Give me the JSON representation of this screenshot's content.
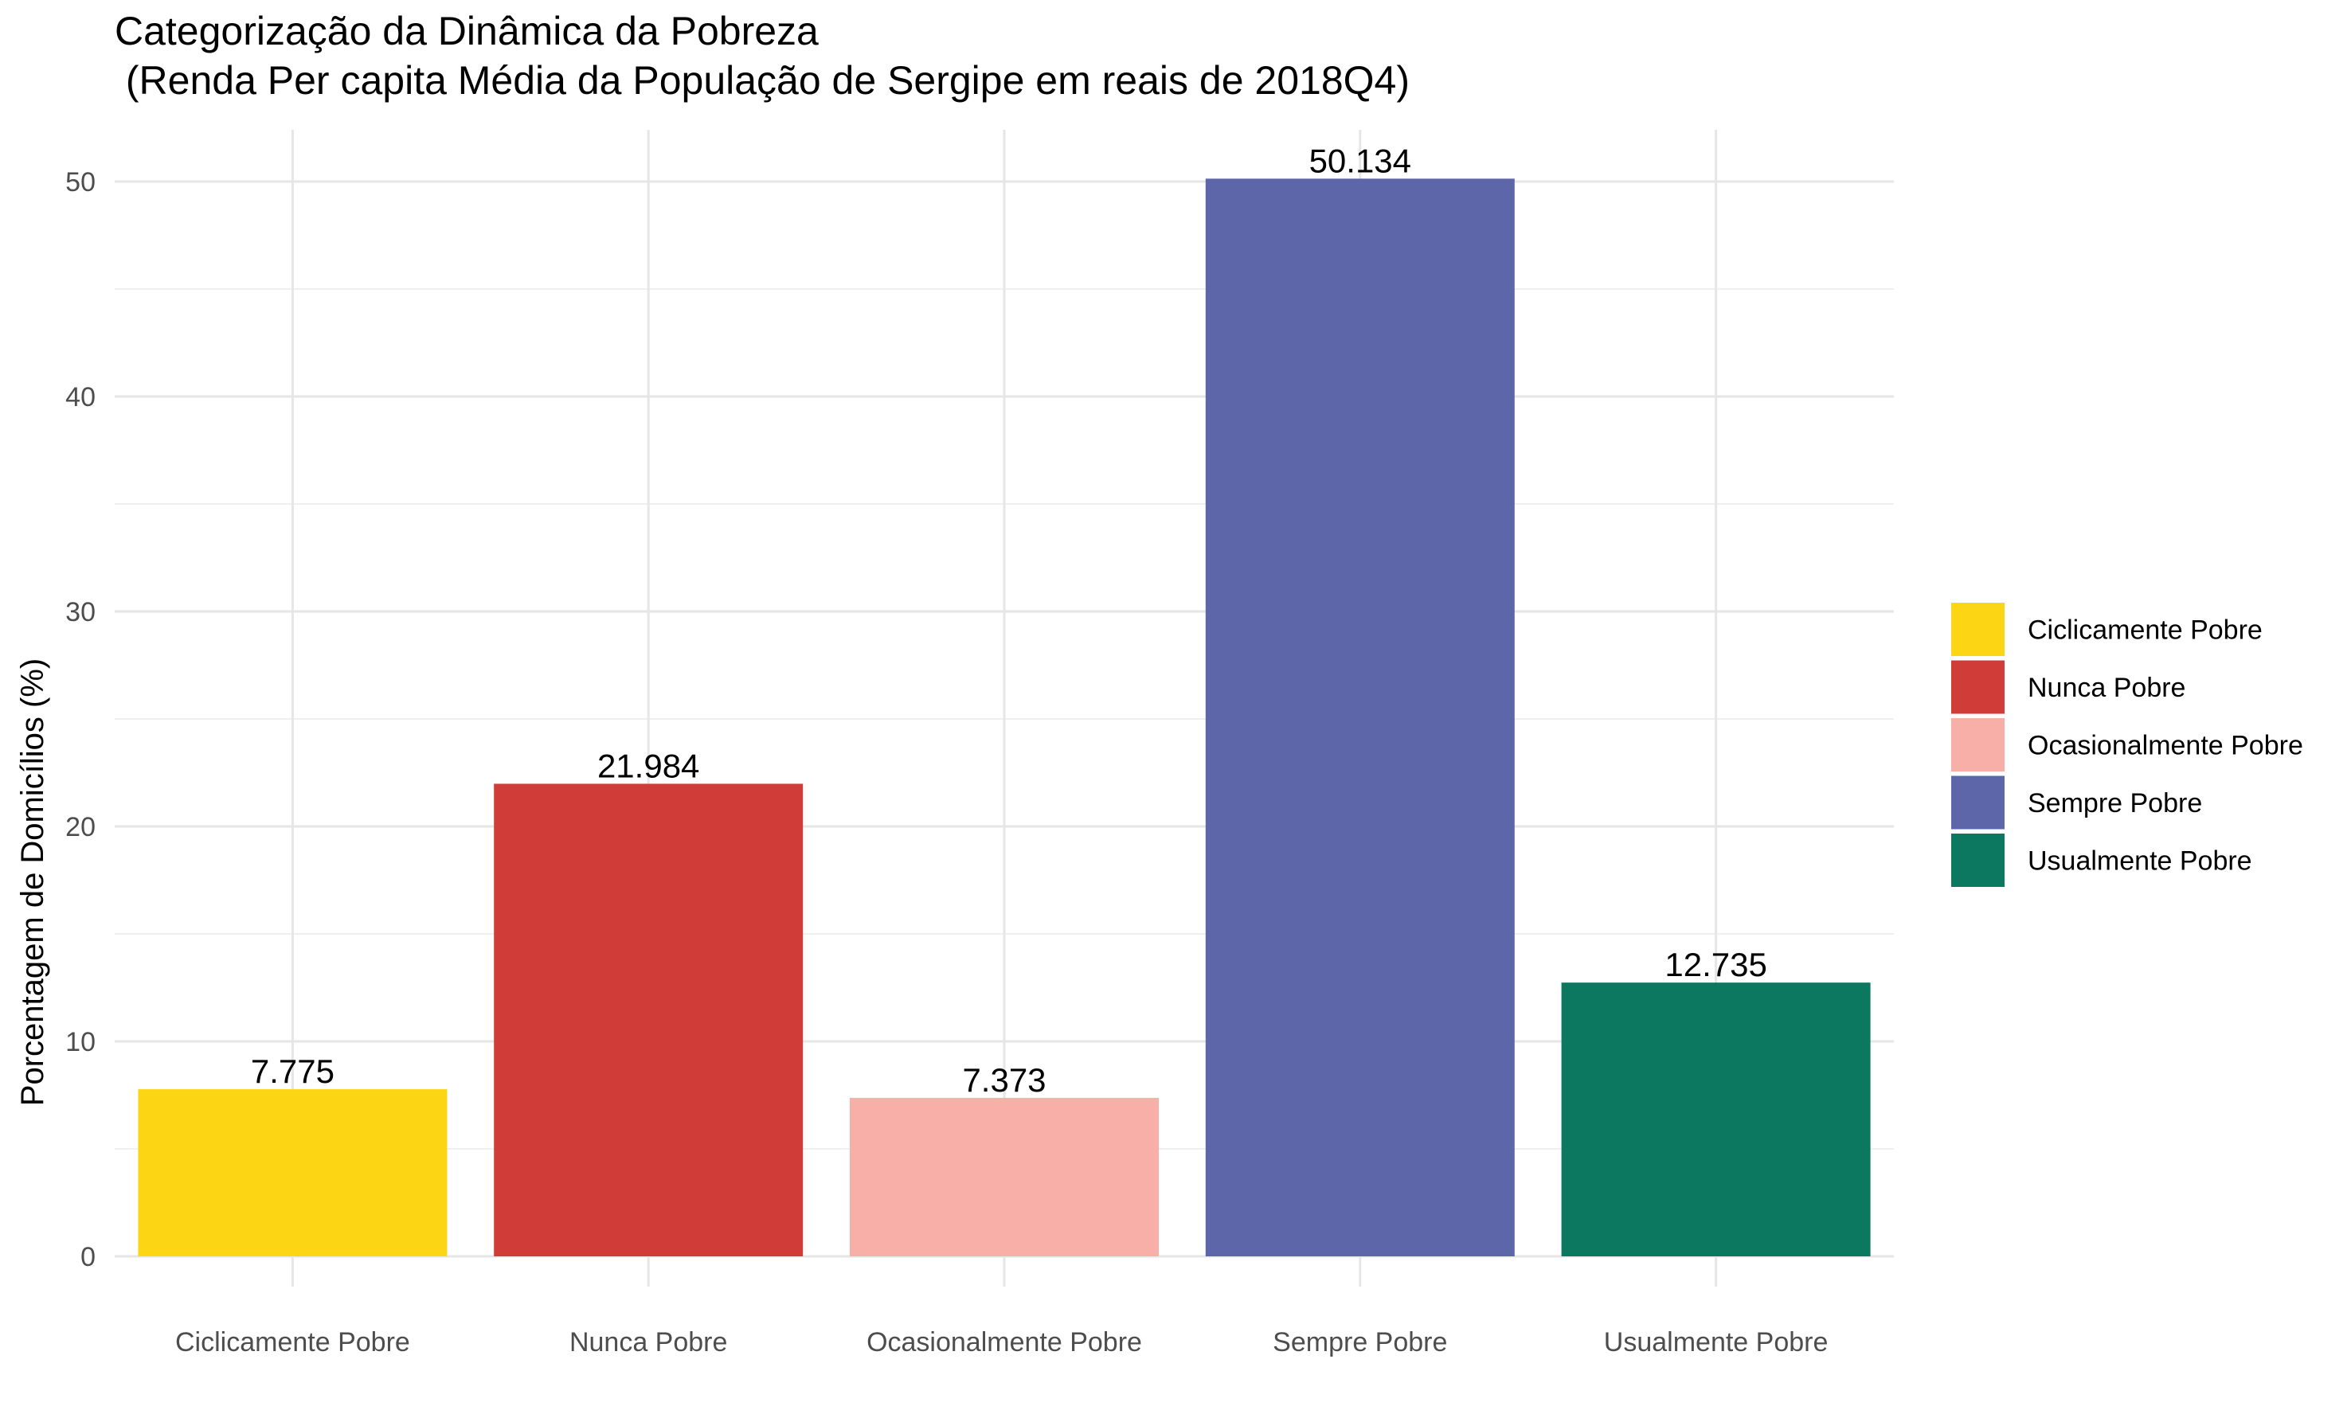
{
  "chart_data": {
    "type": "bar",
    "title": "Categorização da Dinâmica da Pobreza",
    "subtitle": " (Renda Per capita Média da População de Sergipe em reais de 2018Q4)",
    "xlabel": "",
    "ylabel": "Porcentagem de Domicílios (%)",
    "ylim": [
      0,
      52.5
    ],
    "yticks": [
      0,
      10,
      20,
      30,
      40,
      50
    ],
    "grid": true,
    "legend_position": "right",
    "categories": [
      "Ciclicamente Pobre",
      "Nunca Pobre",
      "Ocasionalmente Pobre",
      "Sempre Pobre",
      "Usualmente Pobre"
    ],
    "values": [
      7.775,
      21.984,
      7.373,
      50.134,
      12.735
    ],
    "data_labels": [
      "7.775",
      "21.984",
      "7.373",
      "50.134",
      "12.735"
    ],
    "colors": [
      "#FCD615",
      "#D03C37",
      "#F7AFA8",
      "#5E66AA",
      "#0C7860"
    ],
    "legend": [
      "Ciclicamente Pobre",
      "Nunca Pobre",
      "Ocasionalmente Pobre",
      "Sempre Pobre",
      "Usualmente Pobre"
    ]
  }
}
